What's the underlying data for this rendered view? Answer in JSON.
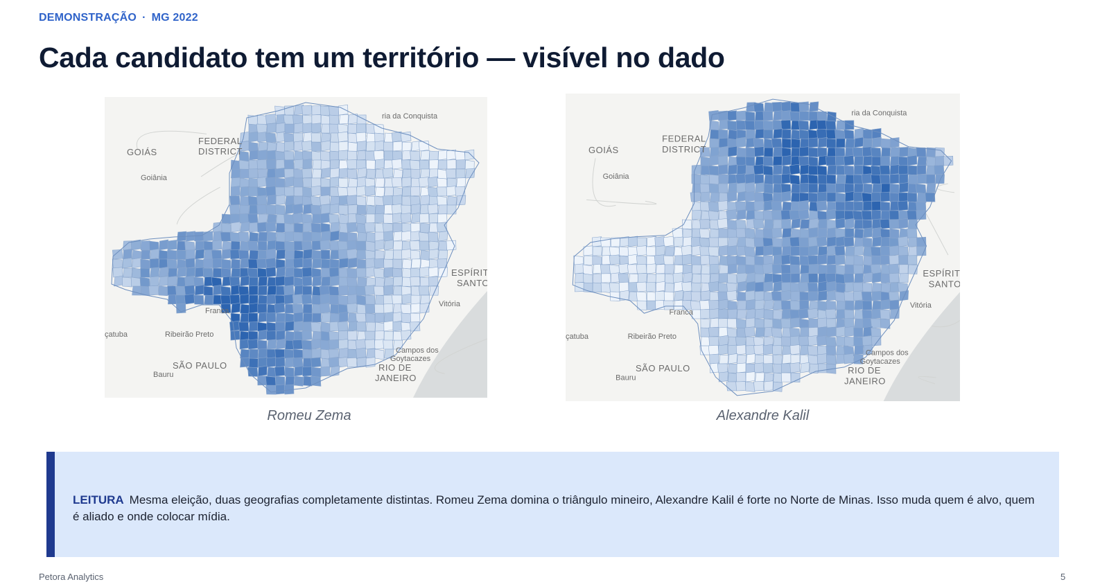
{
  "header": {
    "eyebrow_left": "DEMONSTRAÇÃO",
    "eyebrow_sep": "·",
    "eyebrow_right": "MG 2022",
    "title": "Cada candidato tem um território — visível no dado"
  },
  "maps": [
    {
      "candidate": "Romeu Zema",
      "strong_region": "triângulo mineiro",
      "labels": {
        "goias": "GOIÁS",
        "federal": "FEDERAL",
        "district": "DISTRICT",
        "goiania": "Goiânia",
        "franca": "Franca",
        "ribeirao": "Ribeirão Preto",
        "catuba": "çatuba",
        "sao_paulo": "SÃO PAULO",
        "bauru": "Bauru",
        "rio": "RIO DE",
        "janeiro": "JANEIRO",
        "campos1": "Campos dos",
        "campos2": "Goytacazes",
        "espirito": "ESPÍRITO",
        "santo": "SANTO",
        "vitoria": "Vitória",
        "conquista": "ria da Conquista"
      }
    },
    {
      "candidate": "Alexandre Kalil",
      "strong_region": "Norte de Minas",
      "labels": {
        "goias": "GOIÁS",
        "federal": "FEDERAL",
        "district": "DISTRICT",
        "goiania": "Goiânia",
        "franca": "Franca",
        "ribeirao": "Ribeirão Preto",
        "catuba": "çatuba",
        "sao_paulo": "SÃO PAULO",
        "bauru": "Bauru",
        "rio": "RIO DE",
        "janeiro": "JANEIRO",
        "campos1": "Campos dos",
        "campos2": "Goytacazes",
        "espirito": "ESPÍRITO",
        "santo": "SANTO",
        "vitoria": "Vitória",
        "conquista": "ria da Conquista"
      }
    }
  ],
  "callout": {
    "label": "LEITURA",
    "text": "Mesma eleição, duas geografias completamente distintas. Romeu Zema domina o triângulo mineiro, Alexandre Kalil é forte no Norte de Minas. Isso muda quem é alvo, quem é aliado e onde colocar mídia."
  },
  "footer": {
    "brand": "Petora Analytics",
    "page_number": "5"
  },
  "colors": {
    "accent": "#2f63c9",
    "callout_bg": "#dbe8fb",
    "callout_bar": "#1f3a8f",
    "choropleth_low": "#eef4fb",
    "choropleth_high": "#2c64b0"
  }
}
